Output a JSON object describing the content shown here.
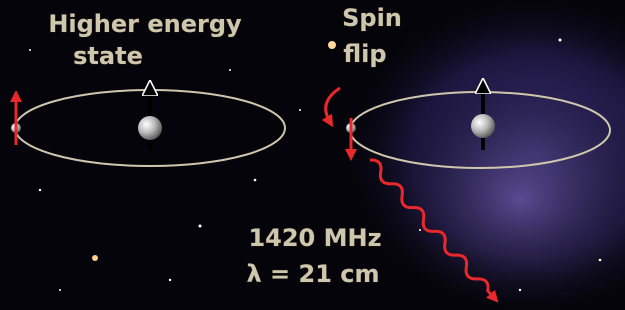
{
  "labels": {
    "higher_energy": [
      "Higher energy",
      "state"
    ],
    "spin_flip": [
      "Spin",
      "flip"
    ],
    "frequency": "1420 MHz",
    "wavelength": "λ = 21 cm"
  }
}
